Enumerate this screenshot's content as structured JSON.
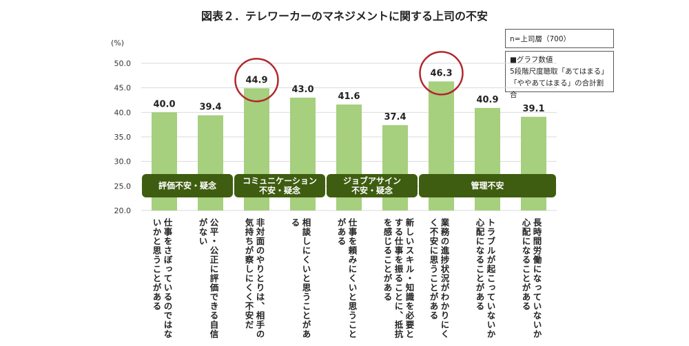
{
  "title": "図表２．テレワーカーのマネジメントに関する上司の不安",
  "legend": {
    "sample": "n=上司層（700）",
    "note_lines": [
      "■グラフ数値",
      "5段階尺度聴取「あてはまる」",
      "「ややあてはまる」の合計割合"
    ]
  },
  "colors": {
    "bar": "#a6cf7e",
    "group": "#3f5d10",
    "circle": "#b0282e",
    "grid": "#d9d9d9"
  },
  "groups": [
    {
      "label": "評価不安・疑念"
    },
    {
      "label": "コミュニケーション\n不安・疑念"
    },
    {
      "label": "ジョブアサイン\n不安・疑念"
    },
    {
      "label": "管理不安"
    }
  ],
  "chart_data": {
    "type": "bar",
    "ylabel": "(%)",
    "ylim": [
      20,
      50
    ],
    "yticks": [
      "50.0",
      "45.0",
      "40.0",
      "35.0",
      "30.0",
      "25.0",
      "20.0"
    ],
    "categories": [
      "仕事をさぼっているのではないかと思うことがある",
      "公平・公正に評価できる自信がない",
      "非対面のやりとりは、相手の気持ちが察しにくく不安だ",
      "相談しにくいと思うことがある",
      "仕事を頼みにくいと思うことがある",
      "新しいスキル・知識を必要とする仕事を振ることに、抵抗を感じることがある",
      "業務の進捗状況がわかりにくく不安に思うことがある",
      "トラブルが起こっていないか心配になることがある",
      "長時間労働になっていないか心配になることがある"
    ],
    "values": [
      40.0,
      39.4,
      44.9,
      43.0,
      41.6,
      37.4,
      46.3,
      40.9,
      39.1
    ],
    "value_labels": [
      "40.0",
      "39.4",
      "44.9",
      "43.0",
      "41.6",
      "37.4",
      "46.3",
      "40.9",
      "39.1"
    ],
    "highlighted": [
      "44.9",
      "46.3"
    ],
    "grid": true
  }
}
